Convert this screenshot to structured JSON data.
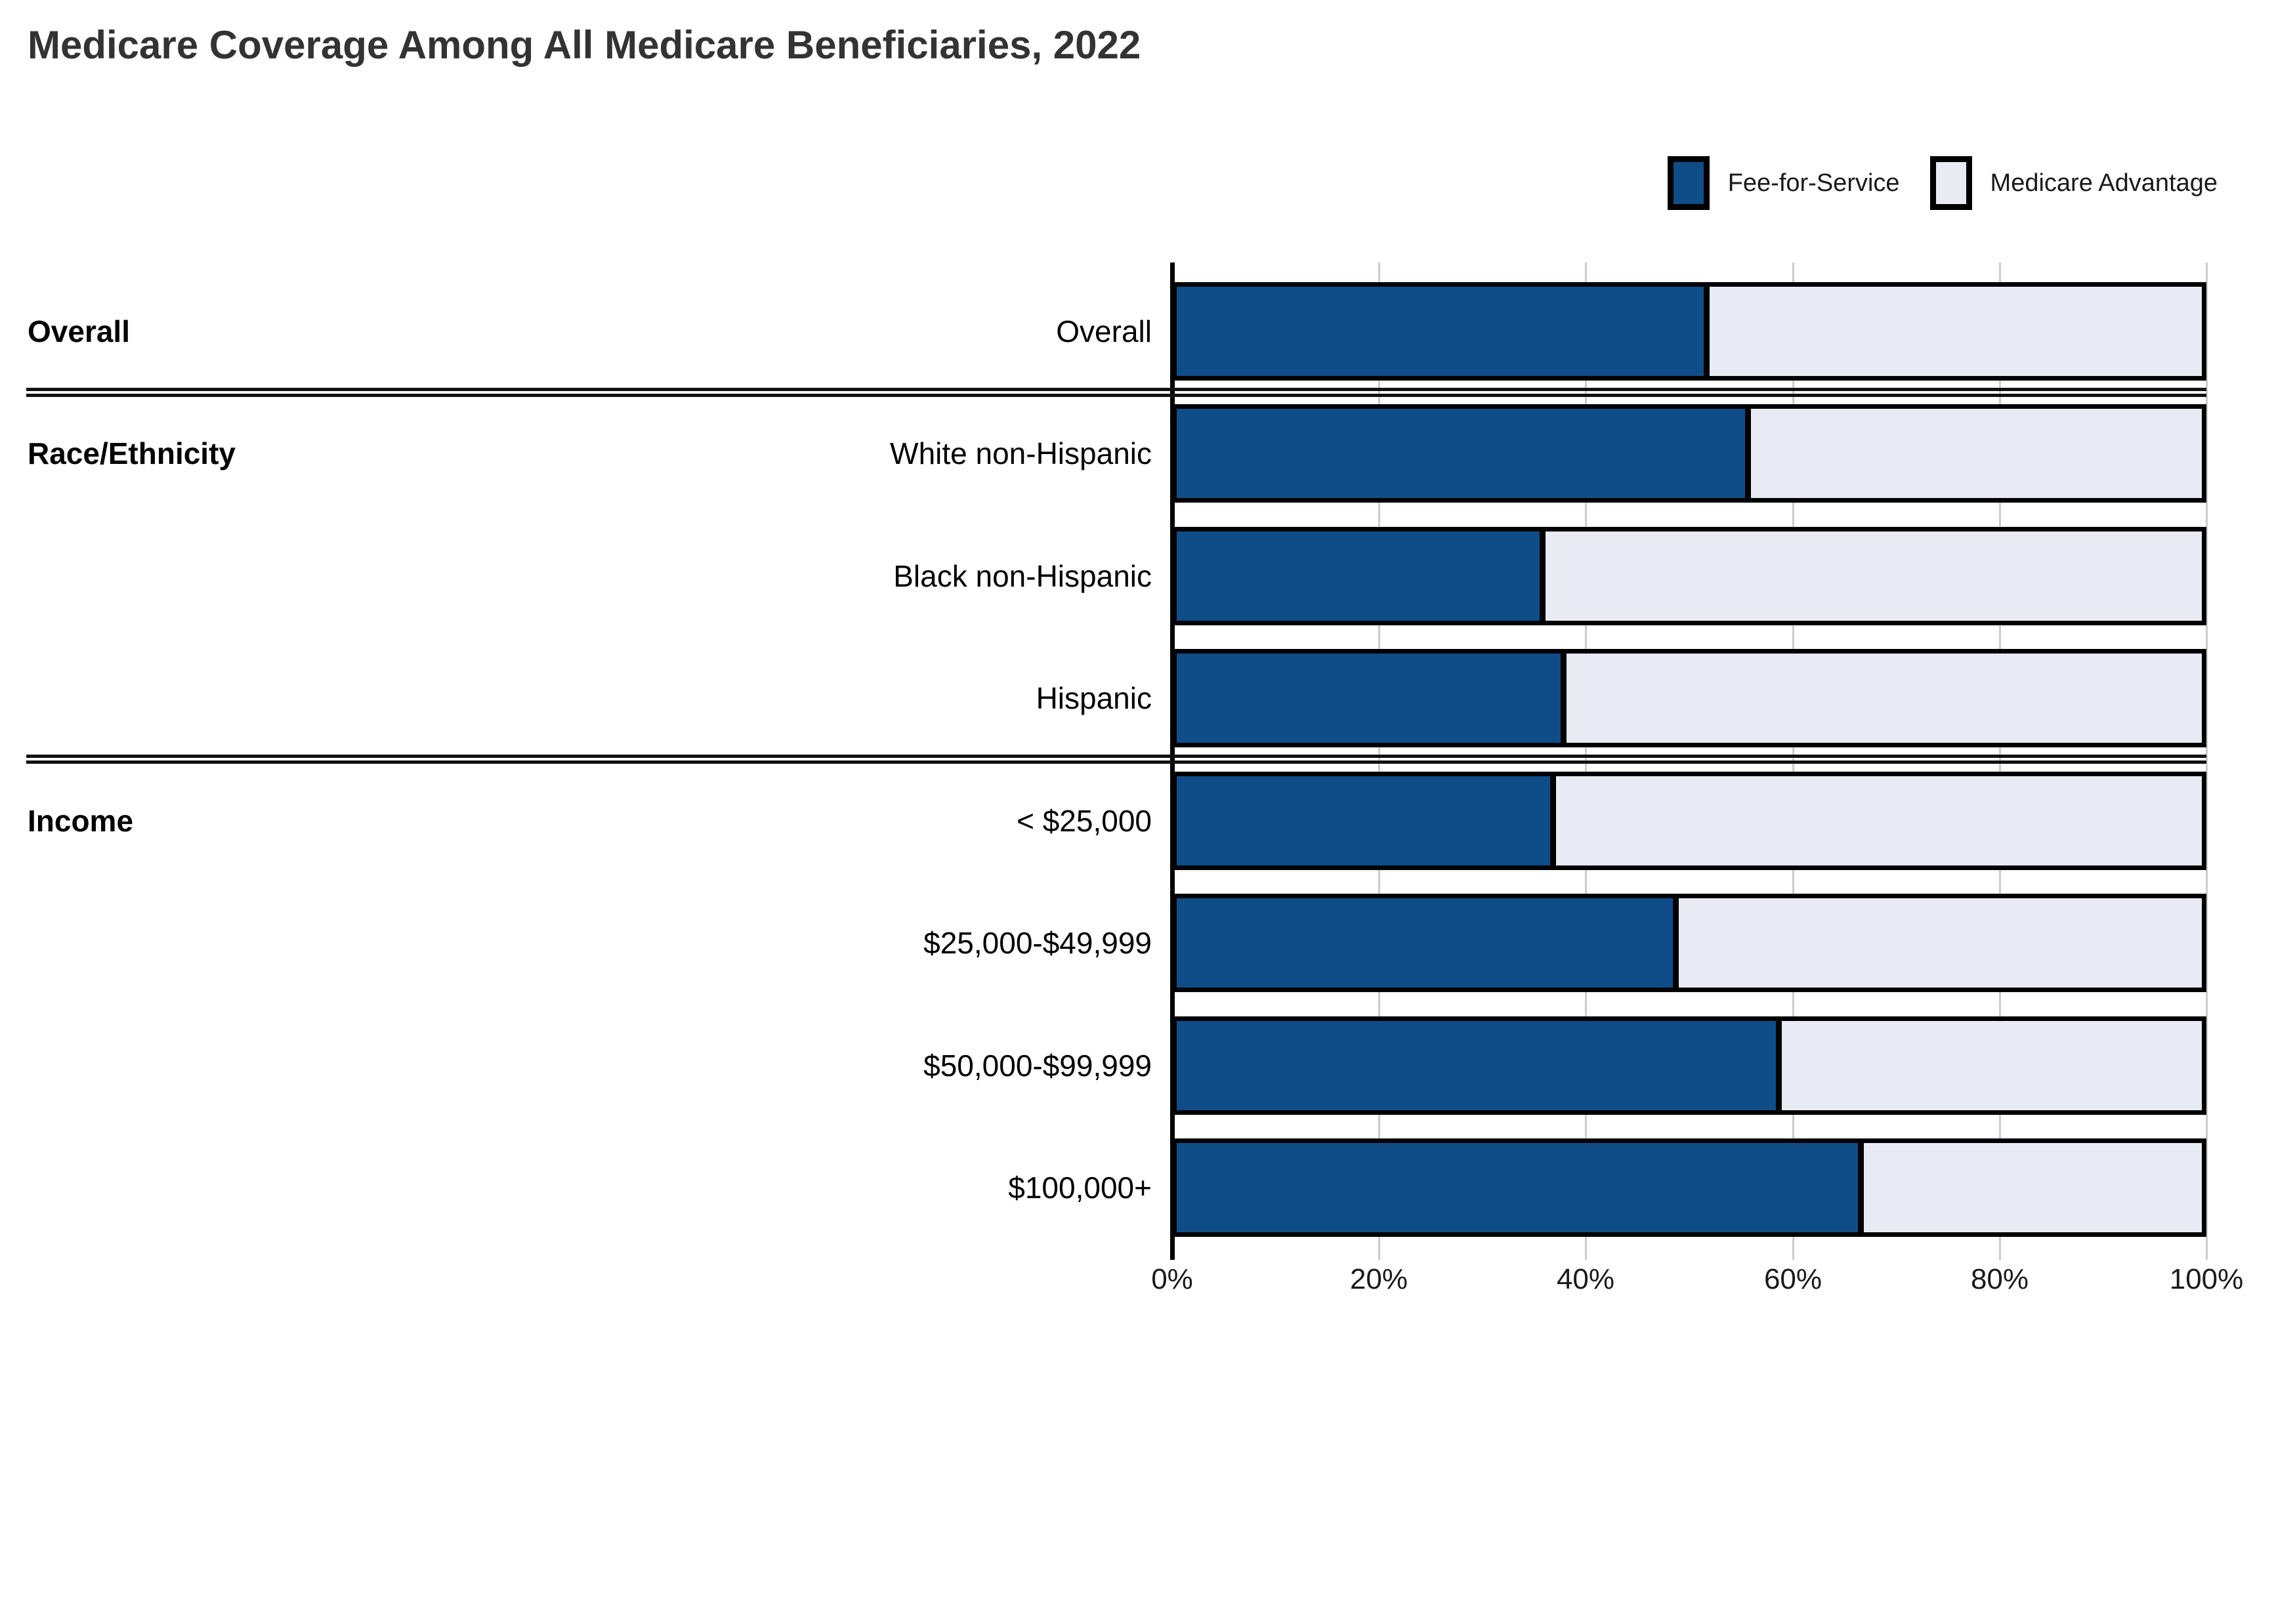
{
  "title": "Medicare Coverage Among All Medicare Beneficiaries, 2022",
  "legend": {
    "items": [
      {
        "label": "Fee-for-Service",
        "color": "#0E4D88"
      },
      {
        "label": "Medicare Advantage",
        "color": "#E8EBF3"
      }
    ]
  },
  "colors": {
    "fee_for_service": "#0E4D88",
    "medicare_advantage": "#E8EBF3",
    "bar_border": "#000000",
    "gridline": "#CCCCCC",
    "section_divider": "#111111",
    "title_text": "#333333"
  },
  "chart_data": {
    "type": "bar",
    "orientation": "horizontal",
    "stacked": true,
    "title": "Medicare Coverage Among All Medicare Beneficiaries, 2022",
    "xlabel": "",
    "ylabel": "",
    "xlim": [
      0,
      100
    ],
    "x_ticks": [
      "0%",
      "20%",
      "40%",
      "60%",
      "80%",
      "100%"
    ],
    "x_tick_values": [
      0,
      20,
      40,
      60,
      80,
      100
    ],
    "grid": true,
    "legend_position": "top-right",
    "categories": [
      "Overall",
      "White non-Hispanic",
      "Black non-Hispanic",
      "Hispanic",
      "< $25,000",
      "$25,000-$49,999",
      "$50,000-$99,999",
      "$100,000+"
    ],
    "series": [
      {
        "name": "Fee-for-Service",
        "values": [
          52,
          56,
          36,
          38,
          37,
          49,
          59,
          67
        ]
      },
      {
        "name": "Medicare Advantage",
        "values": [
          48,
          44,
          64,
          62,
          63,
          51,
          41,
          33
        ]
      }
    ],
    "groups": [
      {
        "section": "Overall",
        "rows": [
          {
            "label": "Overall",
            "fee_for_service": 52,
            "medicare_advantage": 48
          }
        ]
      },
      {
        "section": "Race/Ethnicity",
        "rows": [
          {
            "label": "White non-Hispanic",
            "fee_for_service": 56,
            "medicare_advantage": 44
          },
          {
            "label": "Black non-Hispanic",
            "fee_for_service": 36,
            "medicare_advantage": 64
          },
          {
            "label": "Hispanic",
            "fee_for_service": 38,
            "medicare_advantage": 62
          }
        ]
      },
      {
        "section": "Income",
        "rows": [
          {
            "label": "< $25,000",
            "fee_for_service": 37,
            "medicare_advantage": 63
          },
          {
            "label": "$25,000-$49,999",
            "fee_for_service": 49,
            "medicare_advantage": 51
          },
          {
            "label": "$50,000-$99,999",
            "fee_for_service": 59,
            "medicare_advantage": 41
          },
          {
            "label": "$100,000+",
            "fee_for_service": 67,
            "medicare_advantage": 33
          }
        ]
      }
    ]
  }
}
